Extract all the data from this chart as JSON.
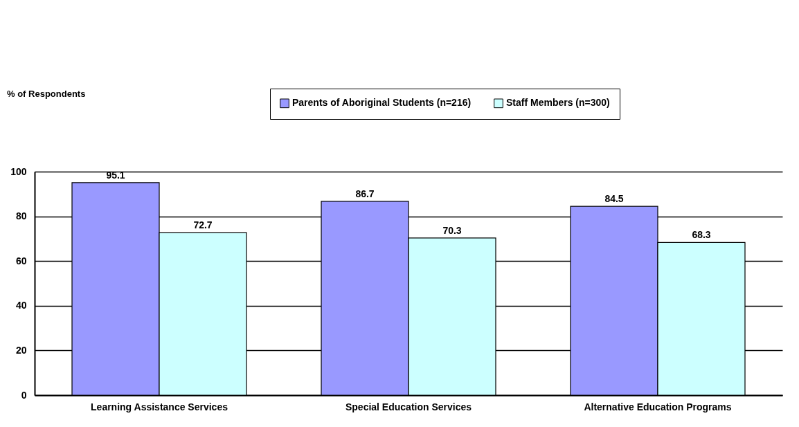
{
  "chart_data": {
    "type": "bar",
    "annotations": [
      "% of Respondents"
    ],
    "categories": [
      "Learning Assistance Services",
      "Special Education Services",
      "Alternative Education Programs"
    ],
    "series": [
      {
        "name": "Parents of Aboriginal Students (n=216)",
        "color": "#9999ff",
        "values": [
          95.1,
          86.7,
          84.5
        ]
      },
      {
        "name": "Staff Members (n=300)",
        "color": "#ccffff",
        "values": [
          72.7,
          70.3,
          68.3
        ]
      }
    ],
    "ylim": [
      0,
      100
    ],
    "yticks": [
      0,
      20,
      40,
      60,
      80,
      100
    ],
    "grid": "y",
    "legend": "top right",
    "data_labels": true
  }
}
